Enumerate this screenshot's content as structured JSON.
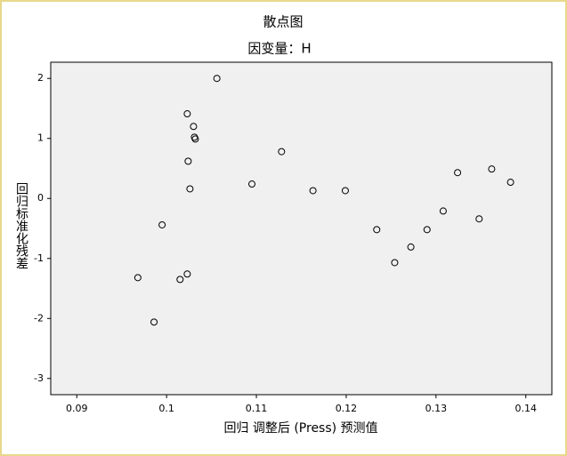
{
  "chart_data": {
    "type": "scatter",
    "title": "散点图",
    "subtitle": "因变量：H",
    "x_label": "回归 调整后 (Press) 预测值",
    "y_label": "回归标准化残差",
    "x": [
      0.1056,
      0.1023,
      0.103,
      0.1031,
      0.1032,
      0.1128,
      0.1024,
      0.1095,
      0.1026,
      0.1163,
      0.1199,
      0.1324,
      0.1362,
      0.1383,
      0.1308,
      0.1348,
      0.1234,
      0.129,
      0.1272,
      0.1254,
      0.0995,
      0.0968,
      0.1015,
      0.1023,
      0.0986
    ],
    "values": [
      2.0,
      1.41,
      1.2,
      1.02,
      0.99,
      0.78,
      0.62,
      0.24,
      0.16,
      0.13,
      0.13,
      0.43,
      0.49,
      0.27,
      -0.21,
      -0.34,
      -0.52,
      -0.52,
      -0.81,
      -1.07,
      -0.44,
      -1.32,
      -1.35,
      -1.26,
      -2.06
    ],
    "color": "#000000",
    "xlim": [
      0.0871,
      0.1429
    ],
    "xticks": [
      0.09,
      0.1,
      0.11,
      0.12,
      0.13,
      0.14
    ],
    "ylim": [
      -3.27,
      2.27
    ],
    "yticks": [
      -3,
      -2,
      -1,
      0,
      1,
      2
    ]
  }
}
